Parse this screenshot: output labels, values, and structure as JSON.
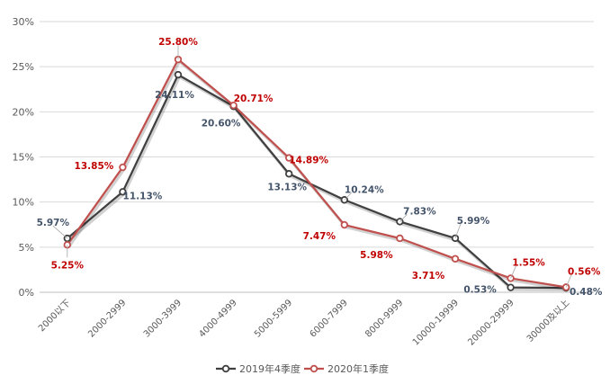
{
  "chart_data": {
    "type": "line",
    "title": "",
    "xlabel": "",
    "ylabel": "",
    "ylim": [
      0,
      30
    ],
    "yticks": [
      "0%",
      "5%",
      "10%",
      "15%",
      "20%",
      "25%",
      "30%"
    ],
    "grid": true,
    "legend_position": "bottom",
    "categories": [
      "2000以下",
      "2000-2999",
      "3000-3999",
      "4000-4999",
      "5000-5999",
      "6000-7999",
      "8000-9999",
      "10000-19999",
      "20000-29999",
      "30000及以上"
    ],
    "series": [
      {
        "name": "2019年4季度",
        "color": "#404040",
        "label_color": "#44546A",
        "values": [
          5.97,
          11.13,
          24.11,
          20.6,
          13.13,
          10.24,
          7.83,
          5.99,
          0.53,
          0.48
        ],
        "labels": [
          "5.97%",
          "11.13%",
          "24.11%",
          "20.60%",
          "13.13%",
          "10.24%",
          "7.83%",
          "5.99%",
          "0.53%",
          "0.48%"
        ]
      },
      {
        "name": "2020年1季度",
        "color": "#C0504D",
        "label_color": "#C00000",
        "values": [
          5.25,
          13.85,
          25.8,
          20.71,
          14.89,
          7.47,
          5.98,
          3.71,
          1.55,
          0.56
        ],
        "labels": [
          "5.25%",
          "13.85%",
          "25.80%",
          "20.71%",
          "14.89%",
          "7.47%",
          "5.98%",
          "3.71%",
          "1.55%",
          "0.56%"
        ]
      }
    ]
  }
}
